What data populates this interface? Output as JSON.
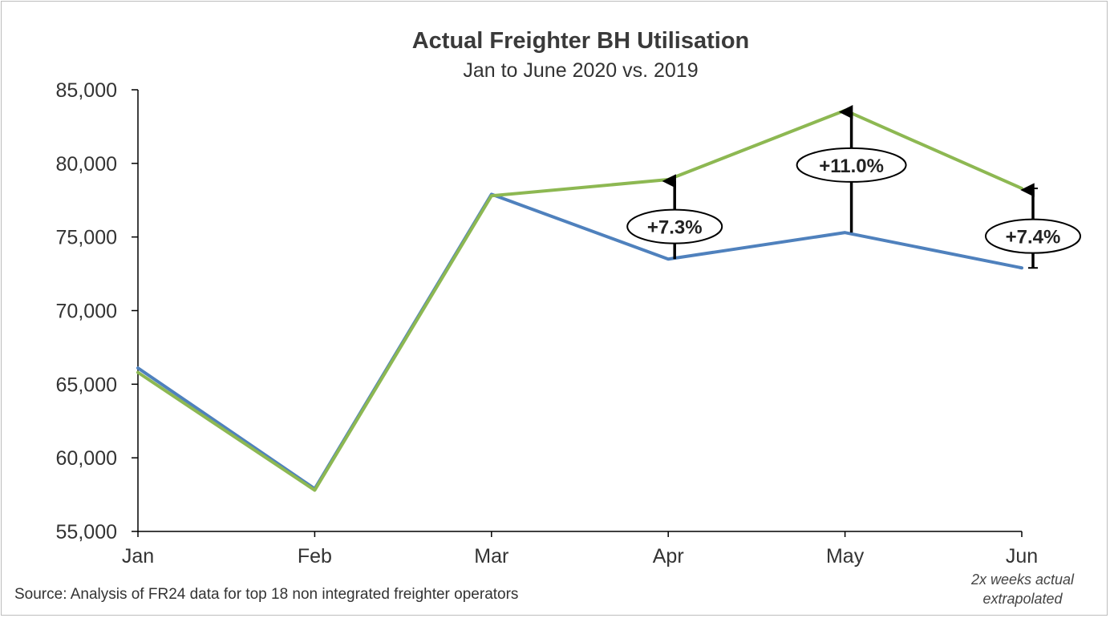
{
  "chart_data": {
    "type": "line",
    "title": "Actual Freighter BH Utilisation",
    "subtitle": "Jan to June 2020 vs. 2019",
    "categories": [
      "Jan",
      "Feb",
      "Mar",
      "Apr",
      "May",
      "Jun"
    ],
    "ylim": [
      55000,
      85000
    ],
    "yticks": [
      55000,
      60000,
      65000,
      70000,
      75000,
      80000,
      85000
    ],
    "ytick_labels": [
      "55,000",
      "60,000",
      "65,000",
      "70,000",
      "75,000",
      "80,000",
      "85,000"
    ],
    "series": [
      {
        "color": "#4f81bd",
        "values": [
          66100,
          57900,
          77900,
          73500,
          75300,
          72900
        ]
      },
      {
        "color": "#8db852",
        "values": [
          65800,
          57800,
          77800,
          78900,
          83600,
          78300
        ]
      }
    ],
    "annotations": [
      {
        "category": "Apr",
        "label": "+7.3%"
      },
      {
        "category": "May",
        "label": "+11.0%"
      },
      {
        "category": "Jun",
        "label": "+7.4%"
      }
    ],
    "x_note": "2x weeks actual extrapolated",
    "grid": false,
    "legend": "none"
  },
  "source": "Source: Analysis of FR24 data for top 18 non integrated freighter operators"
}
